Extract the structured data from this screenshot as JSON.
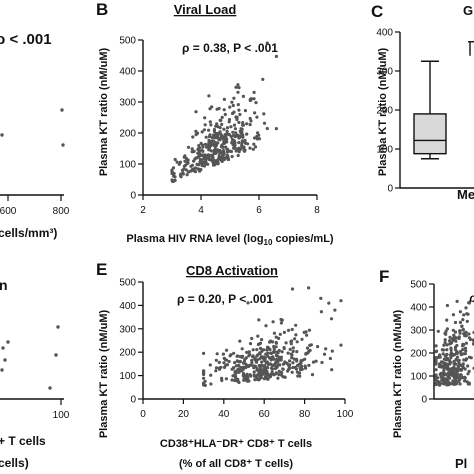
{
  "panel_labels": [
    "B",
    "C",
    "E",
    "F"
  ],
  "fragments": [
    {
      "text": "ρ < .001",
      "role": "panel-A-stat"
    },
    {
      "text": "600",
      "role": "panel-A-xtick"
    },
    {
      "text": "800",
      "role": "panel-A-xtick"
    },
    {
      "text": "cells/mm³)",
      "role": "panel-A-xlabel"
    },
    {
      "text": "n",
      "role": "panel-D-title"
    },
    {
      "text": "100",
      "role": "panel-D-xtick"
    },
    {
      "text": "+ T cells",
      "role": "panel-D-xlabel-1"
    },
    {
      "text": "cells)",
      "role": "panel-D-xlabel-2"
    },
    {
      "text": "Me",
      "role": "panel-C-xtick"
    },
    {
      "text": "G",
      "role": "panel-C-title"
    },
    {
      "text": "Pl",
      "role": "panel-F-xlabel"
    },
    {
      "text": "ρ",
      "role": "panel-F-stat"
    }
  ],
  "chart_data": [
    {
      "panel": "B",
      "type": "scatter",
      "title": "Viral Load",
      "annotation": "ρ = 0.38, P < .001",
      "xlabel": "Plasma HIV RNA level (log10 copies/mL)",
      "ylabel": "Plasma KT ratio (nM/uM)",
      "xlim": [
        2,
        8
      ],
      "ylim": [
        0,
        500
      ],
      "xticks": [
        "2",
        "4",
        "6",
        "8"
      ],
      "yticks": [
        "0",
        "100",
        "200",
        "300",
        "400",
        "500"
      ],
      "n_points": 380
    },
    {
      "panel": "C",
      "type": "box",
      "title": "G",
      "ylabel": "Plasma KT ratio (nM/uM)",
      "ylim": [
        0,
        400
      ],
      "yticks": [
        "0",
        "100",
        "200",
        "300",
        "400"
      ],
      "box": {
        "whisker_low": 75,
        "q1": 88,
        "median": 122,
        "q3": 190,
        "whisker_high": 325
      },
      "outlier": 375,
      "category": "Me"
    },
    {
      "panel": "E",
      "type": "scatter",
      "title": "CD8 Activation",
      "annotation": "ρ = 0.20, P < .001",
      "xlabel": "CD38⁺HLA⁻DR⁺ CD8⁺ T cells",
      "xlabel2": "(% of all CD8⁺ T cells)",
      "ylabel": "Plasma KT ratio (nM/uM)",
      "xlim": [
        0,
        100
      ],
      "ylim": [
        0,
        500
      ],
      "xticks": [
        "0",
        "20",
        "40",
        "60",
        "80",
        "100"
      ],
      "yticks": [
        "0",
        "100",
        "200",
        "300",
        "400",
        "500"
      ],
      "n_points": 380
    },
    {
      "panel": "F",
      "type": "scatter",
      "ylabel": "Plasma KT ratio (nM/uM)",
      "ylim": [
        0,
        500
      ],
      "yticks": [
        "0",
        "100",
        "200",
        "300",
        "400",
        "500"
      ],
      "n_points": 300
    }
  ]
}
